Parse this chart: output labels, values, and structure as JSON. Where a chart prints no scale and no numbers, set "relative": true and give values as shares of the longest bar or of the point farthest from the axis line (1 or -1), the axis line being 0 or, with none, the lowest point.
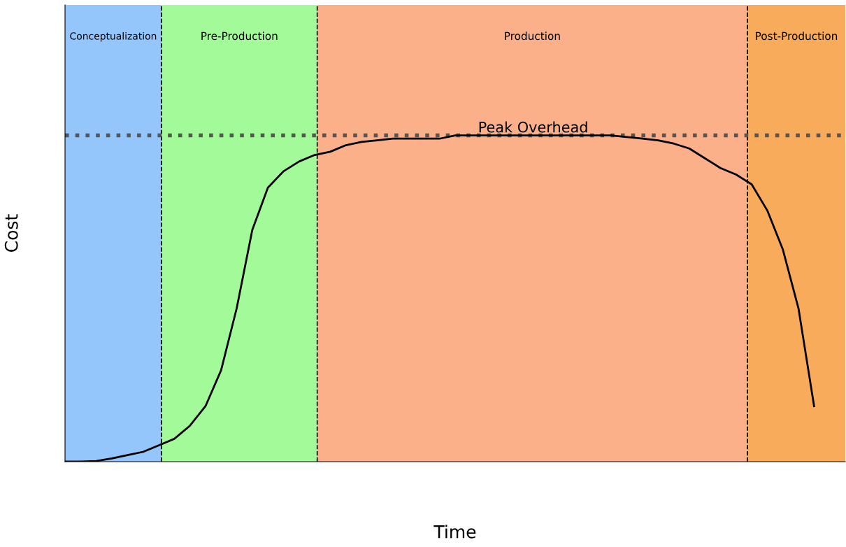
{
  "chart_data": {
    "type": "line",
    "xlabel": "Time",
    "ylabel": "Cost",
    "relative": true,
    "tick_labels": false,
    "categories": [
      null,
      null,
      null,
      null,
      null,
      null,
      null,
      null,
      null,
      null,
      null,
      null,
      null,
      null,
      null,
      null,
      null,
      null,
      null,
      null,
      null,
      null,
      null,
      null,
      null,
      null,
      null,
      null,
      null,
      null,
      null,
      null,
      null,
      null,
      null,
      null,
      null,
      null,
      null,
      null,
      null,
      null,
      null,
      null,
      null,
      null,
      null,
      null,
      null,
      null,
      null
    ],
    "series": [
      {
        "color": "#000000",
        "values": [
          0,
          0,
          0.002,
          0.01,
          0.02,
          0.03,
          0.05,
          0.07,
          0.11,
          0.17,
          0.28,
          0.47,
          0.71,
          0.84,
          0.89,
          0.92,
          0.94,
          0.95,
          0.97,
          0.98,
          0.985,
          0.99,
          0.99,
          0.99,
          0.99,
          1,
          1,
          1,
          1,
          1,
          1,
          1,
          1,
          1,
          1,
          1,
          0.995,
          0.99,
          0.985,
          0.975,
          0.96,
          0.93,
          0.9,
          0.88,
          0.85,
          0.77,
          0.65,
          0.47,
          0.17,
          null,
          null
        ]
      }
    ],
    "annotations": [
      "Conceptualization",
      "Pre-Production",
      "Production",
      "Post-Production"
    ],
    "ref_lines": [
      {
        "axis": "y",
        "value": 1,
        "label": "Peak Overhead",
        "color": "#555555",
        "line_style": "dotted"
      }
    ]
  }
}
